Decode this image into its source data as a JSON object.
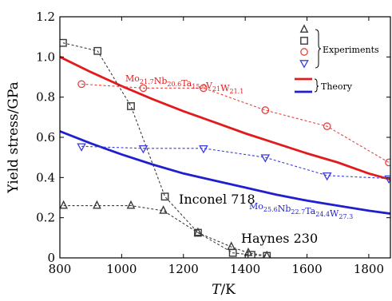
{
  "chart_data": {
    "type": "line",
    "title": "",
    "xlabel": {
      "italic": "T",
      "rest": "/K"
    },
    "ylabel": "Yield stress/GPa",
    "xlim": [
      800,
      1870
    ],
    "ylim": [
      0,
      1.2
    ],
    "xticks": [
      "800",
      "1000",
      "1200",
      "1400",
      "1600",
      "1800"
    ],
    "yticks": [
      "0",
      "0.2",
      "0.4",
      "0.6",
      "0.8",
      "1.0",
      "1.2"
    ],
    "grid": false,
    "legend": {
      "position": "top-right",
      "experiments_label": "Experiments",
      "theory_label": "Theory"
    },
    "series": [
      {
        "name": "Haynes 230",
        "kind": "experiment",
        "marker": "triangle-up",
        "color": "#3a3a3a",
        "x": [
          812,
          920,
          1030,
          1135,
          1247,
          1355,
          1410,
          1470
        ],
        "y": [
          0.26,
          0.26,
          0.26,
          0.235,
          0.125,
          0.055,
          0.025,
          0.01
        ]
      },
      {
        "name": "Inconel 718",
        "kind": "experiment",
        "marker": "square",
        "color": "#3a3a3a",
        "x": [
          810,
          922,
          1030,
          1140,
          1247,
          1360,
          1420,
          1470
        ],
        "y": [
          1.07,
          1.03,
          0.755,
          0.305,
          0.125,
          0.025,
          0.015,
          0.01
        ]
      },
      {
        "name": "Mo21.7Nb20.6Ta15.0V21W21.1",
        "kind": "experiment",
        "marker": "circle",
        "color": "#e8413b",
        "x": [
          870,
          1070,
          1265,
          1465,
          1665,
          1865
        ],
        "y": [
          0.865,
          0.845,
          0.845,
          0.735,
          0.655,
          0.475
        ]
      },
      {
        "name": "Mo25.6Nb22.7Ta24.4W27.3",
        "kind": "experiment",
        "marker": "triangle-down",
        "color": "#3c3ce0",
        "x": [
          870,
          1070,
          1265,
          1465,
          1665,
          1865
        ],
        "y": [
          0.555,
          0.545,
          0.545,
          0.5,
          0.41,
          0.395
        ]
      },
      {
        "name": "Mo21.7Nb20.6Ta15.0V21W21.1 theory",
        "kind": "theory",
        "color": "#e31a1c",
        "x": [
          800,
          900,
          1000,
          1100,
          1200,
          1300,
          1400,
          1500,
          1600,
          1700,
          1800,
          1870
        ],
        "y": [
          1.0,
          0.925,
          0.855,
          0.79,
          0.73,
          0.675,
          0.62,
          0.57,
          0.52,
          0.475,
          0.42,
          0.39
        ]
      },
      {
        "name": "Mo25.6Nb22.7Ta24.4W27.3 theory",
        "kind": "theory",
        "color": "#1f1fd0",
        "x": [
          800,
          900,
          1000,
          1100,
          1200,
          1300,
          1400,
          1500,
          1600,
          1700,
          1800,
          1870
        ],
        "y": [
          0.63,
          0.57,
          0.515,
          0.465,
          0.42,
          0.385,
          0.35,
          0.315,
          0.285,
          0.26,
          0.235,
          0.22
        ]
      }
    ],
    "annotations": {
      "red_alloy": {
        "parts": [
          [
            "Mo",
            "21.7"
          ],
          [
            "Nb",
            "20.6"
          ],
          [
            "Ta",
            "15.0"
          ],
          [
            "V",
            "21"
          ],
          [
            "W",
            "21.1"
          ]
        ],
        "color": "#e31a1c"
      },
      "blue_alloy": {
        "parts": [
          [
            "Mo",
            "25.6"
          ],
          [
            "Nb",
            "22.7"
          ],
          [
            "Ta",
            "24.4"
          ],
          [
            "W",
            "27.3"
          ]
        ],
        "color": "#1f1fd0"
      },
      "inconel": "Inconel 718",
      "haynes": "Haynes 230"
    }
  }
}
